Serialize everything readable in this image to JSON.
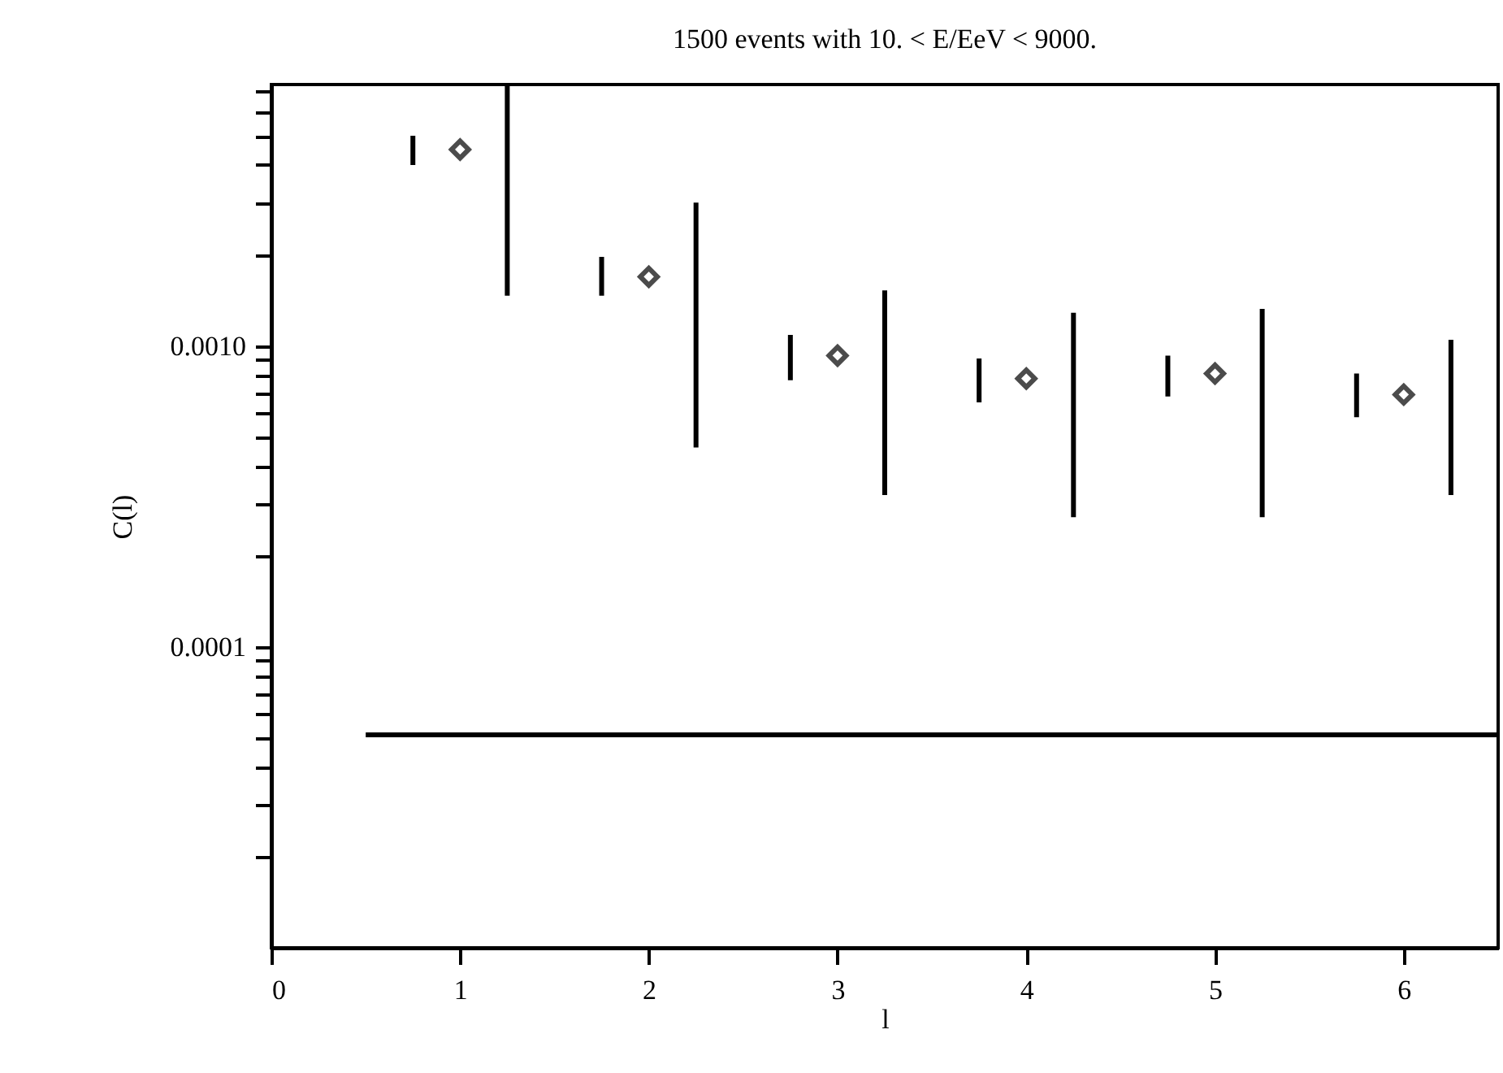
{
  "chart_data": {
    "type": "scatter",
    "title": "1500 events with  10. < E/EeV <  9000.",
    "xlabel": "l",
    "ylabel": "C(l)",
    "log": "y",
    "xlim": [
      0,
      6.5
    ],
    "xticks": [
      0,
      1,
      2,
      3,
      4,
      5,
      6
    ],
    "ylim": [
      1e-05,
      0.0074
    ],
    "yticks": [
      {
        "value": 2e-05,
        "label": null
      },
      {
        "value": 3e-05,
        "label": null
      },
      {
        "value": 4e-05,
        "label": null
      },
      {
        "value": 5e-05,
        "label": null
      },
      {
        "value": 6e-05,
        "label": null
      },
      {
        "value": 7e-05,
        "label": null
      },
      {
        "value": 8e-05,
        "label": null
      },
      {
        "value": 9e-05,
        "label": null
      },
      {
        "value": 0.0001,
        "label": "0.0001"
      },
      {
        "value": 0.0002,
        "label": null
      },
      {
        "value": 0.0003,
        "label": null
      },
      {
        "value": 0.0004,
        "label": null
      },
      {
        "value": 0.0005,
        "label": null
      },
      {
        "value": 0.0006,
        "label": null
      },
      {
        "value": 0.0007,
        "label": null
      },
      {
        "value": 0.0008,
        "label": null
      },
      {
        "value": 0.0009,
        "label": null
      },
      {
        "value": 0.001,
        "label": "0.0010"
      },
      {
        "value": 0.002,
        "label": null
      },
      {
        "value": 0.003,
        "label": null
      },
      {
        "value": 0.004,
        "label": null
      },
      {
        "value": 0.005,
        "label": null
      },
      {
        "value": 0.006,
        "label": null
      },
      {
        "value": 0.007,
        "label": null
      }
    ],
    "marker": "diamond",
    "series": [
      {
        "color": "#000000",
        "x": [
          1,
          2,
          3,
          4,
          5,
          6
        ],
        "values": [
          0.0045,
          0.0017,
          0.00093,
          0.00078,
          0.00081,
          0.00069
        ]
      },
      {
        "type": "line",
        "marker": "none",
        "line_style": "solid",
        "color": "#000000",
        "x": [
          0.75,
          0.75,
          null,
          1.75,
          1.75,
          null,
          2.75,
          2.75,
          null,
          3.75,
          3.75,
          null,
          4.75,
          4.75,
          null,
          5.75,
          5.75
        ],
        "values": [
          0.004,
          0.005,
          null,
          0.00147,
          0.00198,
          null,
          0.00077,
          0.00109,
          null,
          0.00065,
          0.00091,
          null,
          0.00068,
          0.00093,
          null,
          0.00058,
          0.00081
        ]
      },
      {
        "type": "line",
        "marker": "none",
        "line_style": "solid",
        "color": "#000000",
        "x": [
          1.25,
          1.25,
          null,
          2.25,
          2.25,
          null,
          3.25,
          3.25,
          null,
          4.25,
          4.25,
          null,
          5.25,
          5.25,
          null,
          6.25,
          6.25
        ],
        "values": [
          0.00147,
          0.0074,
          null,
          0.00046,
          0.003,
          null,
          0.00032,
          0.00153,
          null,
          0.00027,
          0.00129,
          null,
          0.00027,
          0.00133,
          null,
          0.00032,
          0.00105
        ]
      },
      {
        "type": "line",
        "marker": "none",
        "line_style": "solid",
        "color": "#000000",
        "x": [
          0.5,
          6.5
        ],
        "values": [
          5.1e-05,
          5.1e-05
        ]
      }
    ]
  }
}
